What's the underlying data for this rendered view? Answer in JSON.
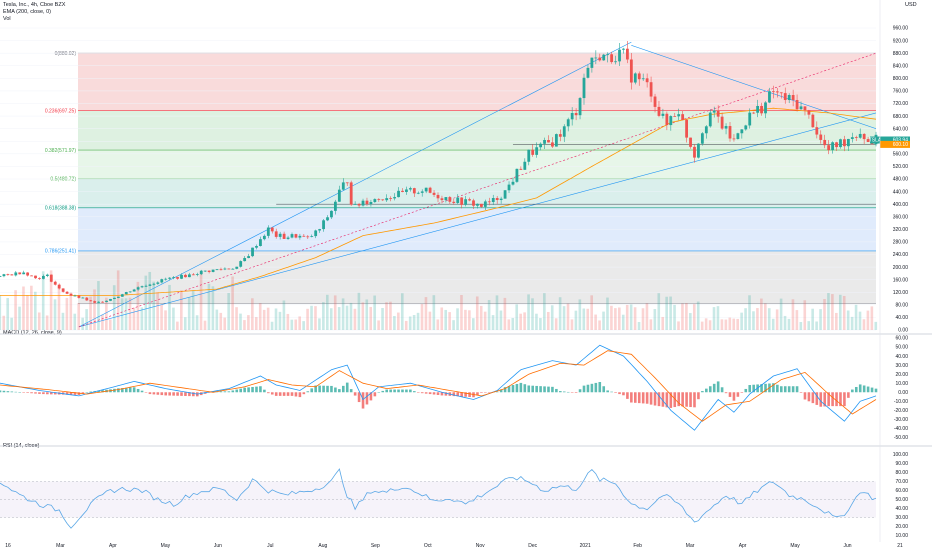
{
  "header": {
    "symbol_line": "Tesla, Inc., 4h, Cboe BZX",
    "ema_line": "EMA (200, close, 0)",
    "vol_line": "Vol",
    "currency": "USD"
  },
  "panels": {
    "macd_title": "MACD (12, 26, close, 9)",
    "rsi_title": "RSI (14, close)"
  },
  "price_tag": {
    "ticker": "TSLA",
    "value": "603.94",
    "secondary": "600.10"
  },
  "colors": {
    "up": "#26a69a",
    "down": "#ef5350",
    "ema": "#ff9800",
    "trend": "#2196f3",
    "fib_red": "#f8d5d5",
    "fib_green": "#d8efdc",
    "fib_green2": "#e3f4e5",
    "fib_teal": "#d3ece9",
    "fib_blue": "#dbe8fb",
    "fib_gray": "#e6e6e6",
    "macd": "#2196f3",
    "signal": "#ff6d00",
    "rsi": "#5aa7e6"
  },
  "chart_data": {
    "type": "candlestick",
    "interval": "4h",
    "price_axis": {
      "min": 0,
      "max": 960,
      "ticks": [
        "960.00",
        "920.00",
        "880.00",
        "840.00",
        "800.00",
        "760.00",
        "720.00",
        "680.00",
        "640.00",
        "600.00",
        "560.00",
        "520.00",
        "480.00",
        "440.00",
        "400.00",
        "360.00",
        "320.00",
        "280.00",
        "240.00",
        "200.00",
        "160.00",
        "120.00",
        "80.00",
        "40.00",
        "0.00"
      ]
    },
    "time_axis": {
      "ticks": [
        "16",
        "Mar",
        "Apr",
        "May",
        "Jun",
        "Jul",
        "Aug",
        "Sep",
        "Oct",
        "Nov",
        "Dec",
        "2021",
        "Feb",
        "Mar",
        "Apr",
        "May",
        "Jun",
        "21"
      ]
    },
    "fib_levels": [
      {
        "label": "0(880.02)",
        "value": 880.02,
        "color": "#787b86"
      },
      {
        "label": "0.236(697.25)",
        "value": 697.25,
        "color": "#f23645"
      },
      {
        "label": "0.382(571.97)",
        "value": 571.97,
        "color": "#4caf50"
      },
      {
        "label": "0.5(480.72)",
        "value": 480.72,
        "color": "#4caf50"
      },
      {
        "label": "0.618(388.38)",
        "value": 388.38,
        "color": "#089981"
      },
      {
        "label": "0.786(251.41)",
        "value": 251.41,
        "color": "#2196f3"
      },
      {
        "label": "",
        "value": 85,
        "color": "#787b86"
      }
    ],
    "price_keypoints": [
      [
        0,
        170
      ],
      [
        3,
        178
      ],
      [
        6,
        185
      ],
      [
        9,
        165
      ],
      [
        12,
        172
      ],
      [
        15,
        130
      ],
      [
        18,
        110
      ],
      [
        21,
        100
      ],
      [
        24,
        85
      ],
      [
        27,
        95
      ],
      [
        30,
        108
      ],
      [
        33,
        125
      ],
      [
        36,
        140
      ],
      [
        39,
        150
      ],
      [
        42,
        162
      ],
      [
        45,
        168
      ],
      [
        48,
        175
      ],
      [
        51,
        185
      ],
      [
        54,
        190
      ],
      [
        57,
        195
      ],
      [
        60,
        200
      ],
      [
        63,
        240
      ],
      [
        66,
        290
      ],
      [
        68,
        320
      ],
      [
        70,
        300
      ],
      [
        72,
        295
      ],
      [
        75,
        300
      ],
      [
        78,
        290
      ],
      [
        81,
        320
      ],
      [
        84,
        380
      ],
      [
        86,
        440
      ],
      [
        88,
        480
      ],
      [
        89,
        410
      ],
      [
        90,
        390
      ],
      [
        92,
        410
      ],
      [
        95,
        415
      ],
      [
        98,
        425
      ],
      [
        101,
        430
      ],
      [
        104,
        440
      ],
      [
        107,
        445
      ],
      [
        110,
        430
      ],
      [
        113,
        420
      ],
      [
        116,
        410
      ],
      [
        119,
        405
      ],
      [
        122,
        395
      ],
      [
        125,
        410
      ],
      [
        128,
        440
      ],
      [
        131,
        500
      ],
      [
        134,
        560
      ],
      [
        137,
        580
      ],
      [
        140,
        600
      ],
      [
        143,
        640
      ],
      [
        146,
        700
      ],
      [
        148,
        800
      ],
      [
        150,
        870
      ],
      [
        151,
        850
      ],
      [
        152,
        880
      ],
      [
        154,
        860
      ],
      [
        156,
        880
      ],
      [
        158,
        870
      ],
      [
        160,
        810
      ],
      [
        163,
        790
      ],
      [
        165,
        760
      ],
      [
        167,
        690
      ],
      [
        169,
        650
      ],
      [
        170,
        680
      ],
      [
        172,
        700
      ],
      [
        174,
        620
      ],
      [
        176,
        560
      ],
      [
        178,
        640
      ],
      [
        180,
        690
      ],
      [
        182,
        670
      ],
      [
        184,
        630
      ],
      [
        186,
        600
      ],
      [
        188,
        650
      ],
      [
        190,
        680
      ],
      [
        192,
        700
      ],
      [
        194,
        720
      ],
      [
        196,
        760
      ],
      [
        198,
        740
      ],
      [
        200,
        730
      ],
      [
        202,
        720
      ],
      [
        204,
        690
      ],
      [
        206,
        660
      ],
      [
        208,
        600
      ],
      [
        210,
        570
      ],
      [
        212,
        590
      ],
      [
        214,
        600
      ],
      [
        216,
        620
      ],
      [
        218,
        630
      ],
      [
        220,
        600
      ],
      [
        222,
        603
      ]
    ],
    "ema200_keypoints": [
      [
        0,
        110
      ],
      [
        30,
        110
      ],
      [
        55,
        130
      ],
      [
        66,
        170
      ],
      [
        80,
        230
      ],
      [
        92,
        300
      ],
      [
        110,
        340
      ],
      [
        125,
        385
      ],
      [
        136,
        420
      ],
      [
        150,
        520
      ],
      [
        160,
        590
      ],
      [
        170,
        660
      ],
      [
        180,
        685
      ],
      [
        196,
        705
      ],
      [
        210,
        690
      ],
      [
        222,
        670
      ]
    ],
    "trendlines": [
      {
        "from": [
          20,
          10
        ],
        "to": [
          160,
          915
        ],
        "style": "solid"
      },
      {
        "from": [
          20,
          10
        ],
        "to": [
          222,
          690
        ],
        "style": "solid"
      },
      {
        "from": [
          20,
          10
        ],
        "to": [
          222,
          880
        ],
        "style": "dashed"
      },
      {
        "from": [
          160,
          905
        ],
        "to": [
          222,
          640
        ],
        "style": "solid"
      }
    ],
    "horizontal_lines": [
      {
        "value": 400,
        "from_bar": 70
      },
      {
        "value": 590,
        "from_bar": 130
      }
    ],
    "volume_profile_note": "per-bar volume",
    "macd": {
      "axis_ticks": [
        "60.00",
        "50.00",
        "40.00",
        "30.00",
        "20.00",
        "10.00",
        "0.00",
        "-10.00",
        "-20.00",
        "-30.00",
        "-40.00",
        "-50.00"
      ],
      "min": -55,
      "max": 60,
      "macd_keypoints": [
        [
          0,
          10
        ],
        [
          10,
          2
        ],
        [
          20,
          -4
        ],
        [
          28,
          5
        ],
        [
          34,
          12
        ],
        [
          42,
          4
        ],
        [
          50,
          -2
        ],
        [
          58,
          4
        ],
        [
          66,
          18
        ],
        [
          70,
          8
        ],
        [
          76,
          2
        ],
        [
          84,
          25
        ],
        [
          88,
          30
        ],
        [
          92,
          -8
        ],
        [
          96,
          6
        ],
        [
          104,
          10
        ],
        [
          112,
          0
        ],
        [
          120,
          -8
        ],
        [
          126,
          2
        ],
        [
          132,
          25
        ],
        [
          140,
          35
        ],
        [
          146,
          30
        ],
        [
          152,
          52
        ],
        [
          158,
          40
        ],
        [
          164,
          12
        ],
        [
          170,
          -20
        ],
        [
          176,
          -42
        ],
        [
          182,
          -8
        ],
        [
          186,
          -22
        ],
        [
          190,
          -2
        ],
        [
          196,
          18
        ],
        [
          202,
          26
        ],
        [
          208,
          -10
        ],
        [
          214,
          -32
        ],
        [
          218,
          -10
        ],
        [
          222,
          -4
        ]
      ],
      "signal_keypoints": [
        [
          0,
          8
        ],
        [
          12,
          3
        ],
        [
          22,
          -2
        ],
        [
          30,
          3
        ],
        [
          38,
          10
        ],
        [
          46,
          5
        ],
        [
          54,
          0
        ],
        [
          62,
          6
        ],
        [
          68,
          14
        ],
        [
          74,
          8
        ],
        [
          80,
          6
        ],
        [
          86,
          24
        ],
        [
          92,
          10
        ],
        [
          98,
          4
        ],
        [
          106,
          8
        ],
        [
          114,
          2
        ],
        [
          122,
          -4
        ],
        [
          128,
          4
        ],
        [
          134,
          20
        ],
        [
          142,
          32
        ],
        [
          148,
          30
        ],
        [
          154,
          46
        ],
        [
          160,
          42
        ],
        [
          166,
          16
        ],
        [
          172,
          -12
        ],
        [
          178,
          -32
        ],
        [
          184,
          -14
        ],
        [
          190,
          -10
        ],
        [
          198,
          14
        ],
        [
          204,
          22
        ],
        [
          210,
          -2
        ],
        [
          216,
          -24
        ],
        [
          222,
          -8
        ]
      ]
    },
    "rsi": {
      "axis_ticks": [
        "100.00",
        "90.00",
        "80.00",
        "70.00",
        "60.00",
        "50.00",
        "40.00",
        "30.00",
        "20.00",
        "10.00"
      ],
      "min": 5,
      "max": 105,
      "upper": 70,
      "lower": 30,
      "keypoints": [
        [
          0,
          70
        ],
        [
          5,
          55
        ],
        [
          10,
          45
        ],
        [
          15,
          38
        ],
        [
          18,
          20
        ],
        [
          21,
          35
        ],
        [
          24,
          48
        ],
        [
          28,
          60
        ],
        [
          32,
          62
        ],
        [
          36,
          60
        ],
        [
          40,
          50
        ],
        [
          44,
          45
        ],
        [
          48,
          55
        ],
        [
          52,
          60
        ],
        [
          56,
          62
        ],
        [
          60,
          50
        ],
        [
          64,
          72
        ],
        [
          68,
          60
        ],
        [
          72,
          55
        ],
        [
          76,
          58
        ],
        [
          80,
          62
        ],
        [
          84,
          70
        ],
        [
          86,
          82
        ],
        [
          88,
          55
        ],
        [
          90,
          40
        ],
        [
          94,
          60
        ],
        [
          98,
          58
        ],
        [
          102,
          65
        ],
        [
          106,
          58
        ],
        [
          110,
          48
        ],
        [
          114,
          52
        ],
        [
          118,
          45
        ],
        [
          122,
          55
        ],
        [
          126,
          65
        ],
        [
          130,
          75
        ],
        [
          134,
          70
        ],
        [
          138,
          60
        ],
        [
          142,
          65
        ],
        [
          146,
          62
        ],
        [
          150,
          82
        ],
        [
          152,
          72
        ],
        [
          156,
          68
        ],
        [
          160,
          45
        ],
        [
          164,
          40
        ],
        [
          168,
          55
        ],
        [
          172,
          45
        ],
        [
          176,
          25
        ],
        [
          180,
          40
        ],
        [
          184,
          55
        ],
        [
          188,
          45
        ],
        [
          192,
          60
        ],
        [
          196,
          70
        ],
        [
          200,
          55
        ],
        [
          204,
          50
        ],
        [
          208,
          40
        ],
        [
          212,
          28
        ],
        [
          214,
          35
        ],
        [
          216,
          45
        ],
        [
          218,
          60
        ],
        [
          220,
          55
        ],
        [
          222,
          50
        ]
      ]
    }
  }
}
